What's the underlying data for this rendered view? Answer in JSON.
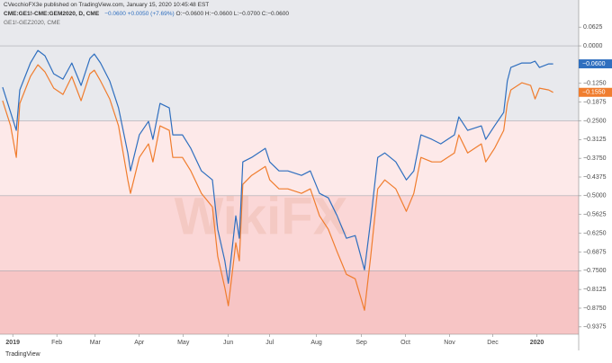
{
  "chart_data": {
    "type": "line",
    "publisher": "CVecchioFX3e published on TradingView.com, January 15, 2020 10:45:48 EST",
    "change": "−0.0600 +0.0050 (+7.69%)",
    "ohlc": "O:−0.0600 H:−0.0600 L:−0.0700 C:−0.0600",
    "watermark": "WikiFX",
    "footer": "TradingView",
    "x": [
      -0.23,
      -0.05,
      0.08,
      0.16,
      0.4,
      0.57,
      0.73,
      0.93,
      1.14,
      1.34,
      1.55,
      1.75,
      1.85,
      1.99,
      2.2,
      2.4,
      2.61,
      2.67,
      2.87,
      3.08,
      3.18,
      3.34,
      3.55,
      3.63,
      3.85,
      4.04,
      4.28,
      4.53,
      4.65,
      4.81,
      4.89,
      5.06,
      5.14,
      5.22,
      5.42,
      5.73,
      5.83,
      6.04,
      6.24,
      6.55,
      6.75,
      6.96,
      7.16,
      7.36,
      7.57,
      7.77,
      7.98,
      8.12,
      8.28,
      8.44,
      8.69,
      8.93,
      9.1,
      9.26,
      9.51,
      9.71,
      10.02,
      10.12,
      10.32,
      10.63,
      10.73,
      10.93,
      11.14,
      11.22,
      11.3,
      11.55,
      11.75,
      11.85,
      11.95,
      12.16,
      12.26
    ],
    "series": [
      {
        "name": "CME:GE1!-CME:GEM2020, D, CME",
        "color": "#2f6fbf",
        "values": [
          -0.138,
          -0.222,
          -0.282,
          -0.147,
          -0.057,
          -0.015,
          -0.033,
          -0.093,
          -0.111,
          -0.057,
          -0.132,
          -0.042,
          -0.027,
          -0.057,
          -0.117,
          -0.207,
          -0.357,
          -0.417,
          -0.297,
          -0.252,
          -0.312,
          -0.192,
          -0.207,
          -0.297,
          -0.297,
          -0.342,
          -0.417,
          -0.447,
          -0.612,
          -0.717,
          -0.792,
          -0.567,
          -0.642,
          -0.387,
          -0.372,
          -0.342,
          -0.387,
          -0.417,
          -0.417,
          -0.432,
          -0.417,
          -0.492,
          -0.507,
          -0.567,
          -0.642,
          -0.633,
          -0.747,
          -0.582,
          -0.372,
          -0.357,
          -0.387,
          -0.447,
          -0.417,
          -0.297,
          -0.312,
          -0.327,
          -0.297,
          -0.237,
          -0.282,
          -0.267,
          -0.312,
          -0.267,
          -0.222,
          -0.117,
          -0.072,
          -0.057,
          -0.057,
          -0.051,
          -0.072,
          -0.06,
          -0.06
        ]
      },
      {
        "name": "GE1!-GEZ2020, CME",
        "color": "#f07d2e",
        "values": [
          -0.183,
          -0.267,
          -0.372,
          -0.192,
          -0.102,
          -0.063,
          -0.087,
          -0.141,
          -0.162,
          -0.102,
          -0.183,
          -0.093,
          -0.081,
          -0.117,
          -0.177,
          -0.267,
          -0.447,
          -0.492,
          -0.372,
          -0.327,
          -0.387,
          -0.267,
          -0.282,
          -0.372,
          -0.372,
          -0.417,
          -0.492,
          -0.537,
          -0.702,
          -0.807,
          -0.867,
          -0.657,
          -0.717,
          -0.462,
          -0.432,
          -0.402,
          -0.447,
          -0.477,
          -0.477,
          -0.492,
          -0.477,
          -0.567,
          -0.612,
          -0.687,
          -0.762,
          -0.777,
          -0.882,
          -0.702,
          -0.477,
          -0.447,
          -0.477,
          -0.552,
          -0.492,
          -0.372,
          -0.387,
          -0.387,
          -0.357,
          -0.297,
          -0.357,
          -0.327,
          -0.387,
          -0.342,
          -0.282,
          -0.192,
          -0.147,
          -0.123,
          -0.132,
          -0.177,
          -0.141,
          -0.147,
          -0.155
        ]
      }
    ],
    "price_labels": [
      {
        "value": -0.06,
        "label": "−0.0600",
        "color": "#2f6fbf"
      },
      {
        "value": -0.155,
        "label": "−0.1550",
        "color": "#f07d2e"
      }
    ],
    "bands": [
      {
        "range": [
          -0.25,
          0.153
        ],
        "color": "#e8e9ed"
      },
      {
        "range": [
          -0.5,
          -0.25
        ],
        "color": "#fde9e9"
      },
      {
        "range": [
          -0.75,
          -0.5
        ],
        "color": "#fbd7d7"
      },
      {
        "range": [
          -0.962,
          -0.75
        ],
        "color": "#f7c5c5"
      }
    ],
    "hlines": [
      0,
      -0.25,
      -0.5,
      -0.75
    ],
    "xlim": [
      -0.29,
      12.84
    ],
    "ylim": [
      -0.962,
      0.153
    ],
    "xticks": [
      {
        "value": 0,
        "label": "2019"
      },
      {
        "value": 1.0,
        "label": "Feb"
      },
      {
        "value": 1.87,
        "label": "Mar"
      },
      {
        "value": 2.87,
        "label": "Apr"
      },
      {
        "value": 3.87,
        "label": "May"
      },
      {
        "value": 4.89,
        "label": "Jun"
      },
      {
        "value": 5.83,
        "label": "Jul"
      },
      {
        "value": 6.89,
        "label": "Aug"
      },
      {
        "value": 7.91,
        "label": "Sep"
      },
      {
        "value": 8.91,
        "label": "Oct"
      },
      {
        "value": 9.91,
        "label": "Nov"
      },
      {
        "value": 10.89,
        "label": "Dec"
      },
      {
        "value": 11.89,
        "label": "2020"
      }
    ],
    "yticks": [
      {
        "value": 0.0625,
        "label": "0.0625"
      },
      {
        "value": 0,
        "label": "0.0000"
      },
      {
        "value": -0.125,
        "label": "−0.1250"
      },
      {
        "value": -0.1875,
        "label": "−0.1875"
      },
      {
        "value": -0.25,
        "label": "−0.2500"
      },
      {
        "value": -0.3125,
        "label": "−0.3125"
      },
      {
        "value": -0.375,
        "label": "−0.3750"
      },
      {
        "value": -0.4375,
        "label": "−0.4375"
      },
      {
        "value": -0.5,
        "label": "−0.5000"
      },
      {
        "value": -0.5625,
        "label": "−0.5625"
      },
      {
        "value": -0.625,
        "label": "−0.6250"
      },
      {
        "value": -0.6875,
        "label": "−0.6875"
      },
      {
        "value": -0.75,
        "label": "−0.7500"
      },
      {
        "value": -0.8125,
        "label": "−0.8125"
      },
      {
        "value": -0.875,
        "label": "−0.8750"
      },
      {
        "value": -0.9375,
        "label": "−0.9375"
      }
    ]
  }
}
